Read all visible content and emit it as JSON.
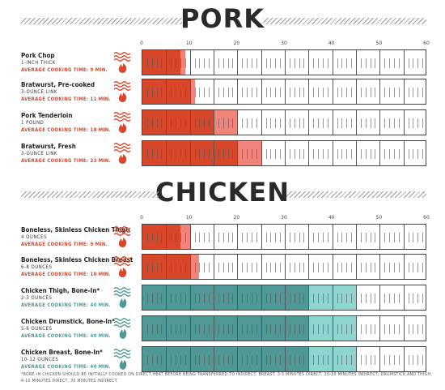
{
  "chart_data": [
    {
      "type": "bar",
      "title": "PORK",
      "xlim": [
        0,
        60
      ],
      "ticks": [
        0,
        10,
        20,
        30,
        40,
        50,
        60
      ],
      "colors": {
        "direct": "#d9472b",
        "indirect": "#f0837a",
        "text": "#d9472b"
      },
      "rows": [
        {
          "name": "Pork Chop",
          "detail": "1-INCH THICK",
          "avg": "AVERAGE COOKING TIME: 9 MIN.",
          "direct": 8,
          "indirect": 1,
          "icon": "flame"
        },
        {
          "name": "Bratwurst, Pre-cooked",
          "detail": "3-OUNCE LINK",
          "avg": "AVERAGE COOKING TIME: 11 MIN.",
          "direct": 10,
          "indirect": 1,
          "icon": "flame"
        },
        {
          "name": "Pork Tenderloin",
          "detail": "1 POUND",
          "avg": "AVERAGE COOKING TIME: 18 MIN.",
          "direct": 15,
          "indirect": 5,
          "icon": "flame"
        },
        {
          "name": "Bratwurst, Fresh",
          "detail": "3-OUNCE LINK",
          "avg": "AVERAGE COOKING TIME: 23 MIN.",
          "direct": 20,
          "indirect": 5,
          "icon": "flame"
        }
      ]
    },
    {
      "type": "bar",
      "title": "CHICKEN",
      "xlim": [
        0,
        60
      ],
      "ticks": [
        0,
        10,
        20,
        30,
        40,
        50,
        60
      ],
      "colors": {
        "direct": "#d9472b",
        "indirect": "#f0837a",
        "text": "#d9472b",
        "teal_direct": "#4e9995",
        "teal_indirect": "#8fd5cf",
        "teal_text": "#4e9995"
      },
      "rows": [
        {
          "name": "Boneless, Skinless Chicken Thigh",
          "detail": "4 OUNCES",
          "avg": "AVERAGE COOKING TIME: 9 MIN.",
          "direct": 8,
          "indirect": 2,
          "icon": "flame"
        },
        {
          "name": "Boneless, Skinless Chicken Breast",
          "detail": "6-8 OUNCES",
          "avg": "AVERAGE COOKING TIME: 10 MIN.",
          "direct": 10,
          "indirect": 2,
          "icon": "flame"
        },
        {
          "name": "Chicken Thigh, Bone-In*",
          "detail": "2-3 OUNCES",
          "avg": "AVERAGE COOKING TIME: 40 MIN.",
          "direct": 35,
          "indirect": 10,
          "icon": "leaf"
        },
        {
          "name": "Chicken Drumstick, Bone-In*",
          "detail": "5-6 OUNCES",
          "avg": "AVERAGE COOKING TIME: 40 MIN.",
          "direct": 35,
          "indirect": 10,
          "icon": "leaf"
        },
        {
          "name": "Chicken Breast, Bone-In*",
          "detail": "10-12 OUNCES",
          "avg": "AVERAGE COOKING TIME: 40 MIN.",
          "direct": 35,
          "indirect": 10,
          "icon": "leaf"
        }
      ]
    }
  ],
  "footnote": "*BONE-IN CHICKEN SHOULD BE INITIALLY COOKED ON DIRECT HEAT BEFORE BEING TRANSFERRED TO INDIRECT. BREAST: 3-5 MINUTES DIRECT, 20-30 MINUTES INDIRECT; DRUMSTICK AND THIGH: 4-10 MINUTES DIRECT, 30 MINUTES INDIRECT."
}
